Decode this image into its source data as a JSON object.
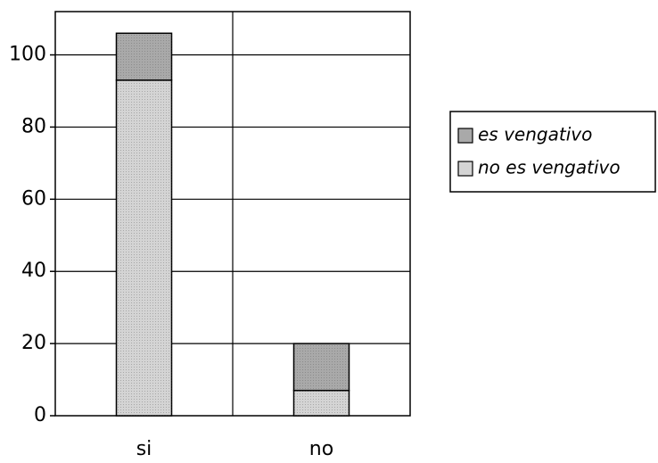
{
  "chart_data": {
    "type": "stacked_bar",
    "categories": [
      "si",
      "no"
    ],
    "series": [
      {
        "name": "es vengativo",
        "color": "#a9a9a9",
        "values": [
          13,
          13
        ]
      },
      {
        "name": "no es vengativo",
        "color": "#d4d4d4",
        "values": [
          93,
          7
        ]
      }
    ],
    "ylim": [
      0,
      112
    ],
    "yticks": [
      0,
      20,
      40,
      60,
      80,
      100
    ],
    "grid": true,
    "legend": "right"
  }
}
